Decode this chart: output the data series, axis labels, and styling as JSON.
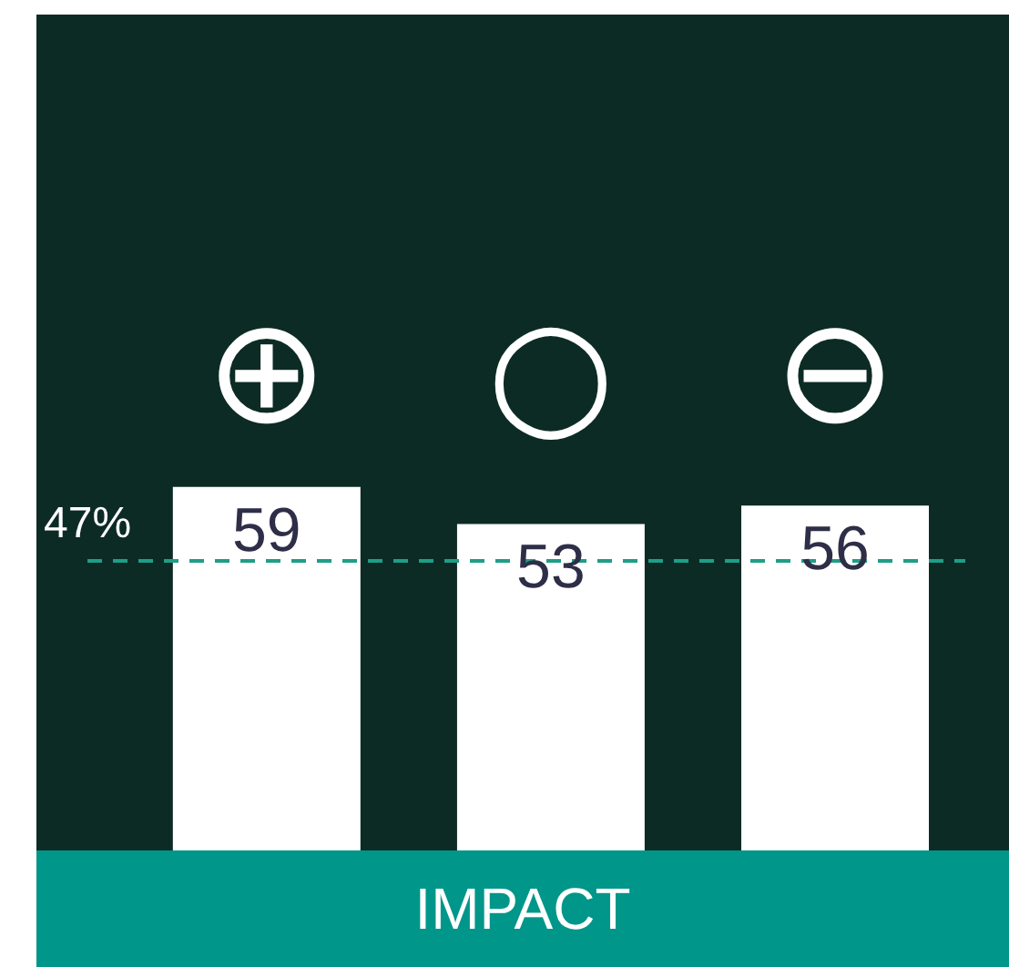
{
  "chart_data": {
    "type": "bar",
    "xlabel": "IMPACT",
    "categories": [
      "⊕",
      "○",
      "⊖"
    ],
    "series": [
      {
        "color": "#ffffff",
        "values": [
          59,
          53,
          56
        ]
      }
    ],
    "data_labels": true,
    "ref_lines": [
      {
        "axis": "y",
        "value": 47,
        "label": "47%",
        "color": "#1e9e86",
        "line_style": "dashed"
      }
    ]
  }
}
